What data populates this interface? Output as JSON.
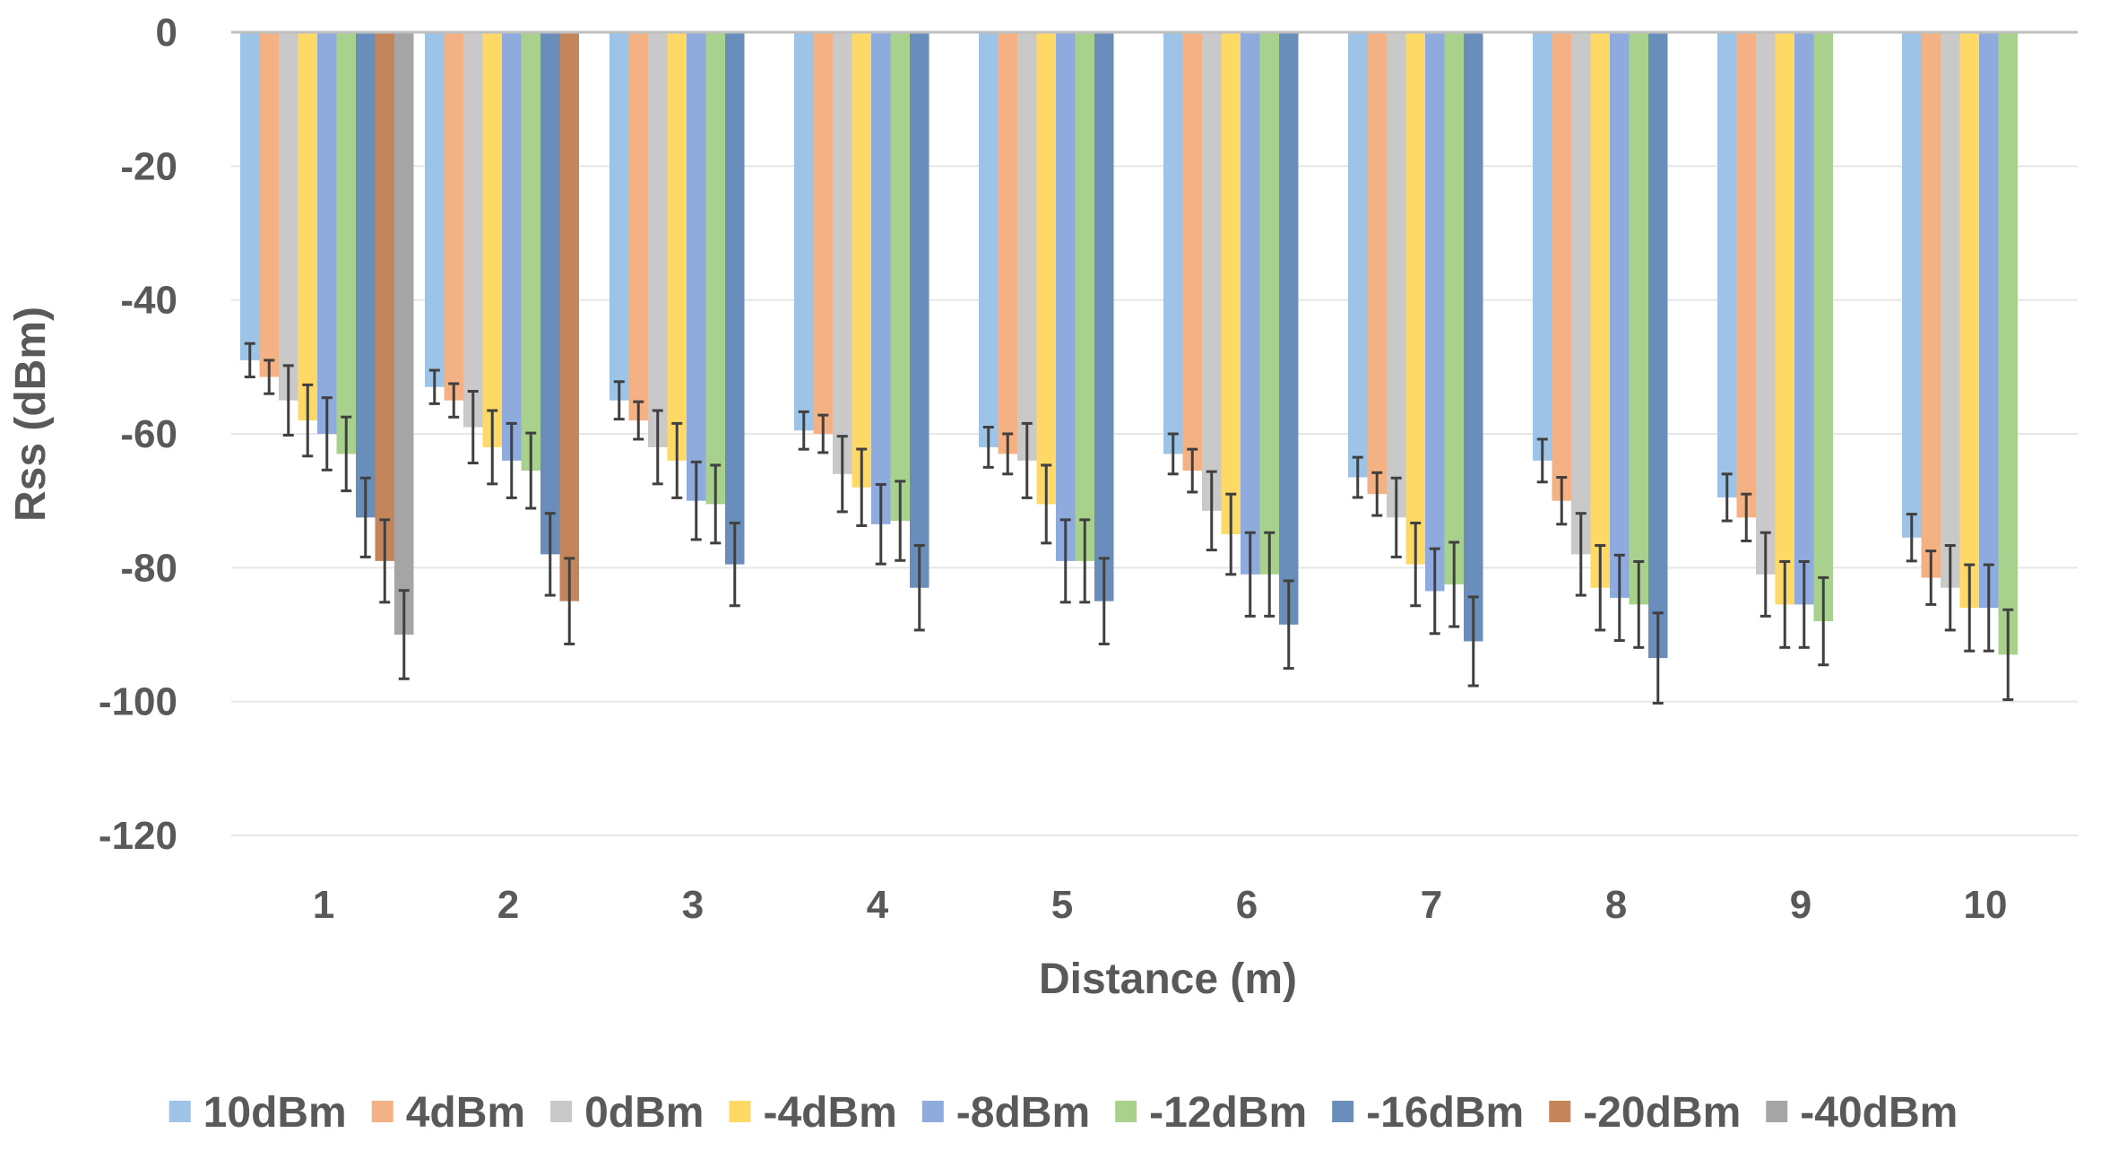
{
  "chart_data": {
    "type": "bar",
    "title": "",
    "xlabel": "Distance (m)",
    "ylabel": "Rss (dBm)",
    "ylim": [
      -120,
      0
    ],
    "yticks": [
      0,
      -20,
      -40,
      -60,
      -80,
      -100,
      -120
    ],
    "grid": true,
    "legend_position": "bottom",
    "error_bars": true,
    "categories": [
      "1",
      "2",
      "3",
      "4",
      "5",
      "6",
      "7",
      "8",
      "9",
      "10"
    ],
    "series": [
      {
        "name": "10dBm",
        "color": "#9DC3E6",
        "values": [
          -49,
          -53,
          -55,
          -59.5,
          -62,
          -63,
          -66.5,
          -64,
          -69.5,
          -75.5
        ],
        "errors": [
          2.5,
          2.5,
          2.8,
          2.8,
          3,
          3,
          3,
          3.2,
          3.5,
          3.5
        ]
      },
      {
        "name": "4dBm",
        "color": "#F4B183",
        "values": [
          -51.5,
          -55,
          -58,
          -60,
          -63,
          -65.5,
          -69,
          -70,
          -72.5,
          -81.5
        ],
        "errors": [
          2.5,
          2.5,
          2.8,
          2.8,
          3,
          3.2,
          3.2,
          3.5,
          3.5,
          4
        ]
      },
      {
        "name": "0dBm",
        "color": "#C9C9C9",
        "values": [
          -55,
          -59,
          -62,
          -66,
          -64,
          -71.5,
          -72.5,
          -78,
          -81,
          -83
        ]
      },
      {
        "name": "-4dBm",
        "color": "#FFD966",
        "values": [
          -58,
          -62,
          -64,
          -68,
          -70.5,
          -75,
          -79.5,
          -83,
          -85.5,
          -86
        ]
      },
      {
        "name": "-8dBm",
        "color": "#8FAADC",
        "values": [
          -60,
          -64,
          -70,
          -73.5,
          -79,
          -81,
          -83.5,
          -84.5,
          -85.5,
          -86
        ]
      },
      {
        "name": "-12dBm",
        "color": "#A9D18E",
        "values": [
          -63,
          -65.5,
          -70.5,
          -73,
          -79,
          -81,
          -82.5,
          -85.5,
          -88,
          -93
        ]
      },
      {
        "name": "-16dBm",
        "color": "#6A8EBB",
        "values": [
          -72.5,
          -78,
          -79.5,
          -83,
          -85,
          -88.5,
          -91,
          -93.5,
          null,
          null
        ]
      },
      {
        "name": "-20dBm",
        "color": "#C5855B",
        "values": [
          -79,
          -85,
          null,
          null,
          null,
          null,
          null,
          null,
          null,
          null
        ]
      },
      {
        "name": "-40dBm",
        "color": "#A5A5A5",
        "values": [
          -90,
          null,
          null,
          null,
          null,
          null,
          null,
          null,
          null,
          null
        ]
      }
    ]
  }
}
